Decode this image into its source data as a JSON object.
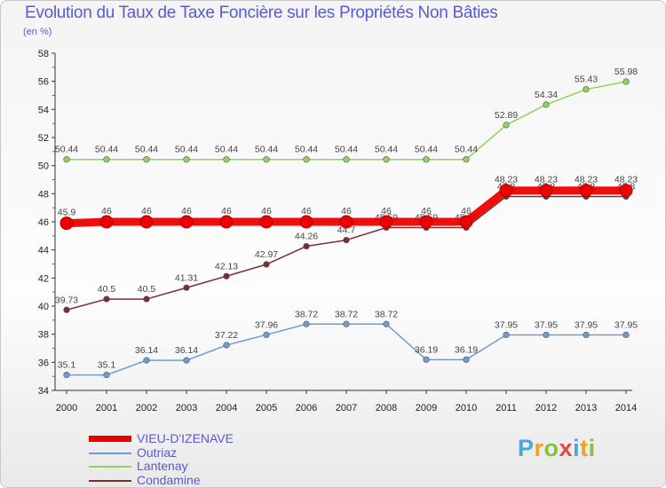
{
  "chart_data": {
    "type": "line",
    "title": "Evolution du Taux de Taxe Foncière sur les Propriétés Non Bâties",
    "ylabel": "(en %)",
    "xlabel": "",
    "ylim": [
      34,
      58
    ],
    "yticks": [
      "34",
      "36",
      "38",
      "40",
      "42",
      "44",
      "46",
      "48",
      "50",
      "52",
      "54",
      "56",
      "58"
    ],
    "categories": [
      "2000",
      "2001",
      "2002",
      "2003",
      "2004",
      "2005",
      "2006",
      "2007",
      "2008",
      "2009",
      "2010",
      "2011",
      "2012",
      "2013",
      "2014"
    ],
    "series": [
      {
        "name": "Lantenay",
        "color": "#8fd45c",
        "values": [
          50.44,
          50.44,
          50.44,
          50.44,
          50.44,
          50.44,
          50.44,
          50.44,
          50.44,
          50.44,
          50.44,
          52.89,
          54.34,
          55.43,
          55.98
        ],
        "labels": [
          "50.44",
          "50.44",
          "50.44",
          "50.44",
          "50.44",
          "50.44",
          "50.44",
          "50.44",
          "50.44",
          "50.44",
          "50.44",
          "52.89",
          "54.34",
          "55.43",
          "55.98"
        ]
      },
      {
        "name": "Outriaz",
        "color": "#6f9dcf",
        "values": [
          35.1,
          35.1,
          36.14,
          36.14,
          37.22,
          37.96,
          38.72,
          38.72,
          38.72,
          36.19,
          36.19,
          37.95,
          37.95,
          37.95,
          37.95
        ],
        "labels": [
          "35.1",
          "35.1",
          "36.14",
          "36.14",
          "37.22",
          "37.96",
          "38.72",
          "38.72",
          "38.72",
          "36.19",
          "36.19",
          "37.95",
          "37.95",
          "37.95",
          "37.95"
        ]
      },
      {
        "name": "Condamine",
        "color": "#7a2f2f",
        "values": [
          39.73,
          40.5,
          40.5,
          41.31,
          42.13,
          42.97,
          44.26,
          44.7,
          45.59,
          45.59,
          45.59,
          47.8,
          47.8,
          47.8,
          47.8
        ],
        "labels": [
          "39.73",
          "40.5",
          "40.5",
          "41.31",
          "42.13",
          "42.97",
          "44.26",
          "44.7",
          "45.59",
          "45.59",
          "45.59",
          "47.8",
          "47.8",
          "47.8",
          "47.8"
        ]
      },
      {
        "name": "VIEU-D'IZENAVE",
        "color": "#ee0000",
        "values": [
          45.9,
          46,
          46,
          46,
          46,
          46,
          46,
          46,
          46,
          46,
          46,
          48.23,
          48.23,
          48.23,
          48.23
        ],
        "labels": [
          "45.9",
          "46",
          "46",
          "46",
          "46",
          "46",
          "46",
          "46",
          "46",
          "46",
          "46",
          "48.23",
          "48.23",
          "48.23",
          "48.23"
        ]
      }
    ],
    "legend_order": [
      "VIEU-D'IZENAVE",
      "Outriaz",
      "Lantenay",
      "Condamine"
    ],
    "grid": false
  },
  "brand": {
    "letters": [
      "P",
      "r",
      "o",
      "x",
      "i",
      "t",
      "i"
    ],
    "colors": [
      "#4aa8dc",
      "#f0a028",
      "#88c040",
      "#e04848",
      "#4aa8dc",
      "#f0a028",
      "#88c040"
    ]
  }
}
